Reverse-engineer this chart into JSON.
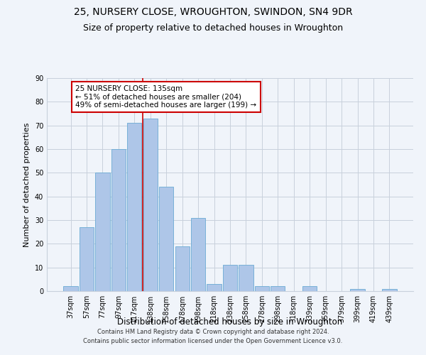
{
  "title": "25, NURSERY CLOSE, WROUGHTON, SWINDON, SN4 9DR",
  "subtitle": "Size of property relative to detached houses in Wroughton",
  "xlabel": "Distribution of detached houses by size in Wroughton",
  "ylabel": "Number of detached properties",
  "categories": [
    "37sqm",
    "57sqm",
    "77sqm",
    "97sqm",
    "117sqm",
    "138sqm",
    "158sqm",
    "178sqm",
    "198sqm",
    "218sqm",
    "238sqm",
    "258sqm",
    "278sqm",
    "298sqm",
    "318sqm",
    "339sqm",
    "359sqm",
    "379sqm",
    "399sqm",
    "419sqm",
    "439sqm"
  ],
  "values": [
    2,
    27,
    50,
    60,
    71,
    73,
    44,
    19,
    31,
    3,
    11,
    11,
    2,
    2,
    0,
    2,
    0,
    0,
    1,
    0,
    1
  ],
  "bar_color": "#aec6e8",
  "bar_edge_color": "#6aaad4",
  "highlight_index": 5,
  "vline_color": "#cc0000",
  "vline_x": 4.5,
  "ylim": [
    0,
    90
  ],
  "yticks": [
    0,
    10,
    20,
    30,
    40,
    50,
    60,
    70,
    80,
    90
  ],
  "annotation_text": "25 NURSERY CLOSE: 135sqm\n← 51% of detached houses are smaller (204)\n49% of semi-detached houses are larger (199) →",
  "annotation_box_color": "#ffffff",
  "annotation_box_edge": "#cc0000",
  "bg_color": "#f0f4fa",
  "grid_color": "#c8d0dc",
  "footer1": "Contains HM Land Registry data © Crown copyright and database right 2024.",
  "footer2": "Contains public sector information licensed under the Open Government Licence v3.0.",
  "title_fontsize": 10,
  "subtitle_fontsize": 9,
  "tick_fontsize": 7,
  "ylabel_fontsize": 8,
  "xlabel_fontsize": 8.5,
  "annotation_fontsize": 7.5,
  "footer_fontsize": 6
}
